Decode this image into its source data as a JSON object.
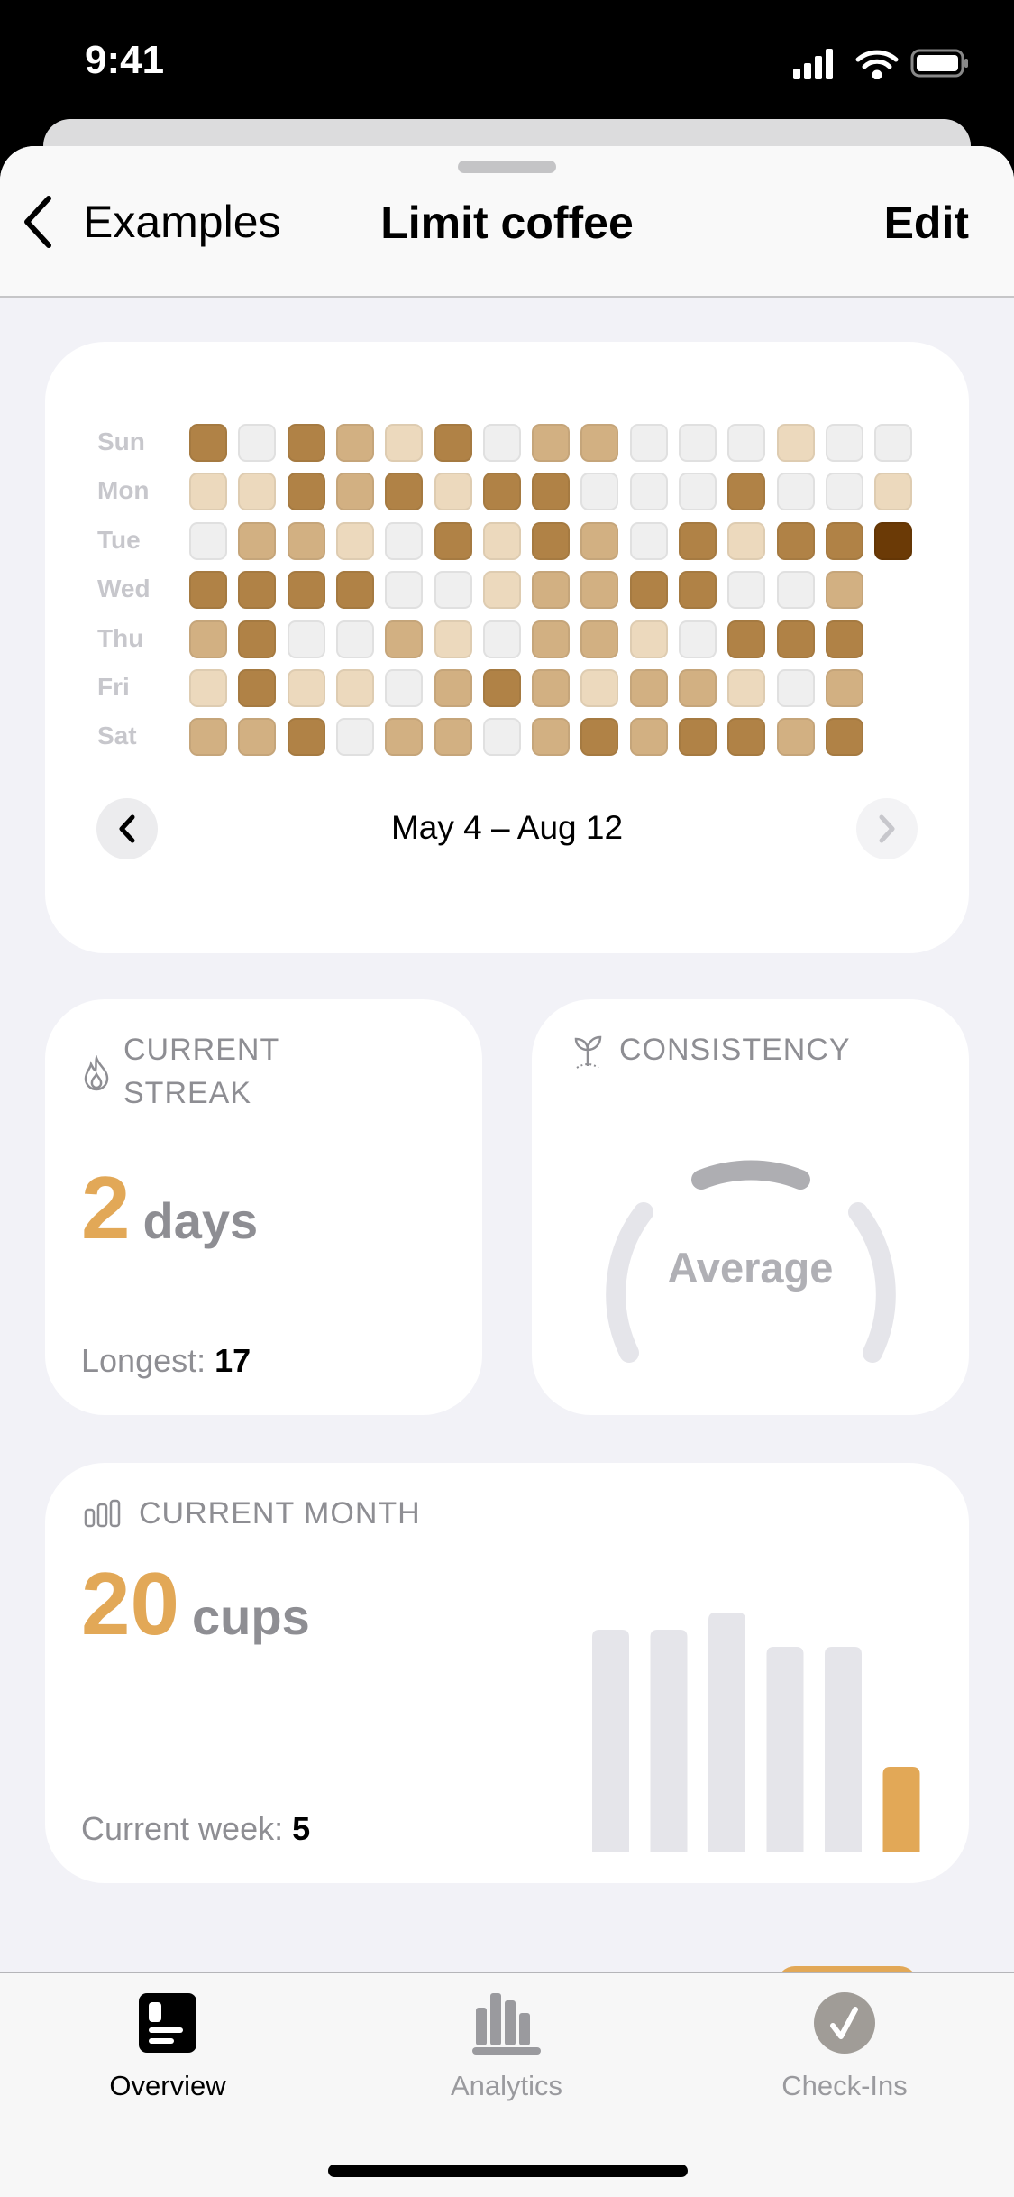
{
  "status_bar": {
    "time": "9:41"
  },
  "nav": {
    "back_label": "Examples",
    "title": "Limit coffee",
    "edit_label": "Edit"
  },
  "heatmap": {
    "day_labels": [
      "Sun",
      "Mon",
      "Tue",
      "Wed",
      "Thu",
      "Fri",
      "Sat"
    ],
    "level_colors": [
      "#efefef",
      "#ecd9bd",
      "#d2b082",
      "#b08246",
      "#6b3a06"
    ],
    "rows": [
      [
        3,
        0,
        3,
        2,
        1,
        3,
        0,
        2,
        2,
        0,
        0,
        0,
        1,
        0,
        0
      ],
      [
        1,
        1,
        3,
        2,
        3,
        1,
        3,
        3,
        0,
        0,
        0,
        3,
        0,
        0,
        1
      ],
      [
        0,
        2,
        2,
        1,
        0,
        3,
        1,
        3,
        2,
        0,
        3,
        1,
        3,
        3,
        4
      ],
      [
        3,
        3,
        3,
        3,
        0,
        0,
        1,
        2,
        2,
        3,
        3,
        0,
        0,
        2
      ],
      [
        2,
        3,
        0,
        0,
        2,
        1,
        0,
        2,
        2,
        1,
        0,
        3,
        3,
        3
      ],
      [
        1,
        3,
        1,
        1,
        0,
        2,
        3,
        2,
        1,
        2,
        2,
        1,
        0,
        2
      ],
      [
        2,
        2,
        3,
        0,
        2,
        2,
        0,
        2,
        3,
        2,
        3,
        3,
        2,
        3
      ]
    ],
    "date_range": "May 4 – Aug 12"
  },
  "streak": {
    "header_line1": "CURRENT",
    "header_line2": "STREAK",
    "value": "2",
    "unit": "days",
    "longest_label": "Longest:",
    "longest_value": "17"
  },
  "consistency": {
    "header": "CONSISTENCY",
    "rating": "Average"
  },
  "month": {
    "header": "CURRENT MONTH",
    "value": "20",
    "unit": "cups",
    "week_label": "Current week:",
    "week_value": "5"
  },
  "chart_data": {
    "type": "bar",
    "values": [
      13,
      13,
      14,
      12,
      12,
      5
    ],
    "highlight_color": "#e2a857",
    "bar_color": "#e5e5ea"
  },
  "tabs": [
    {
      "label": "Overview",
      "active": true
    },
    {
      "label": "Analytics",
      "active": false
    },
    {
      "label": "Check-Ins",
      "active": false
    }
  ],
  "colors": {
    "accent": "#e2a857",
    "background": "#f2f2f7"
  }
}
